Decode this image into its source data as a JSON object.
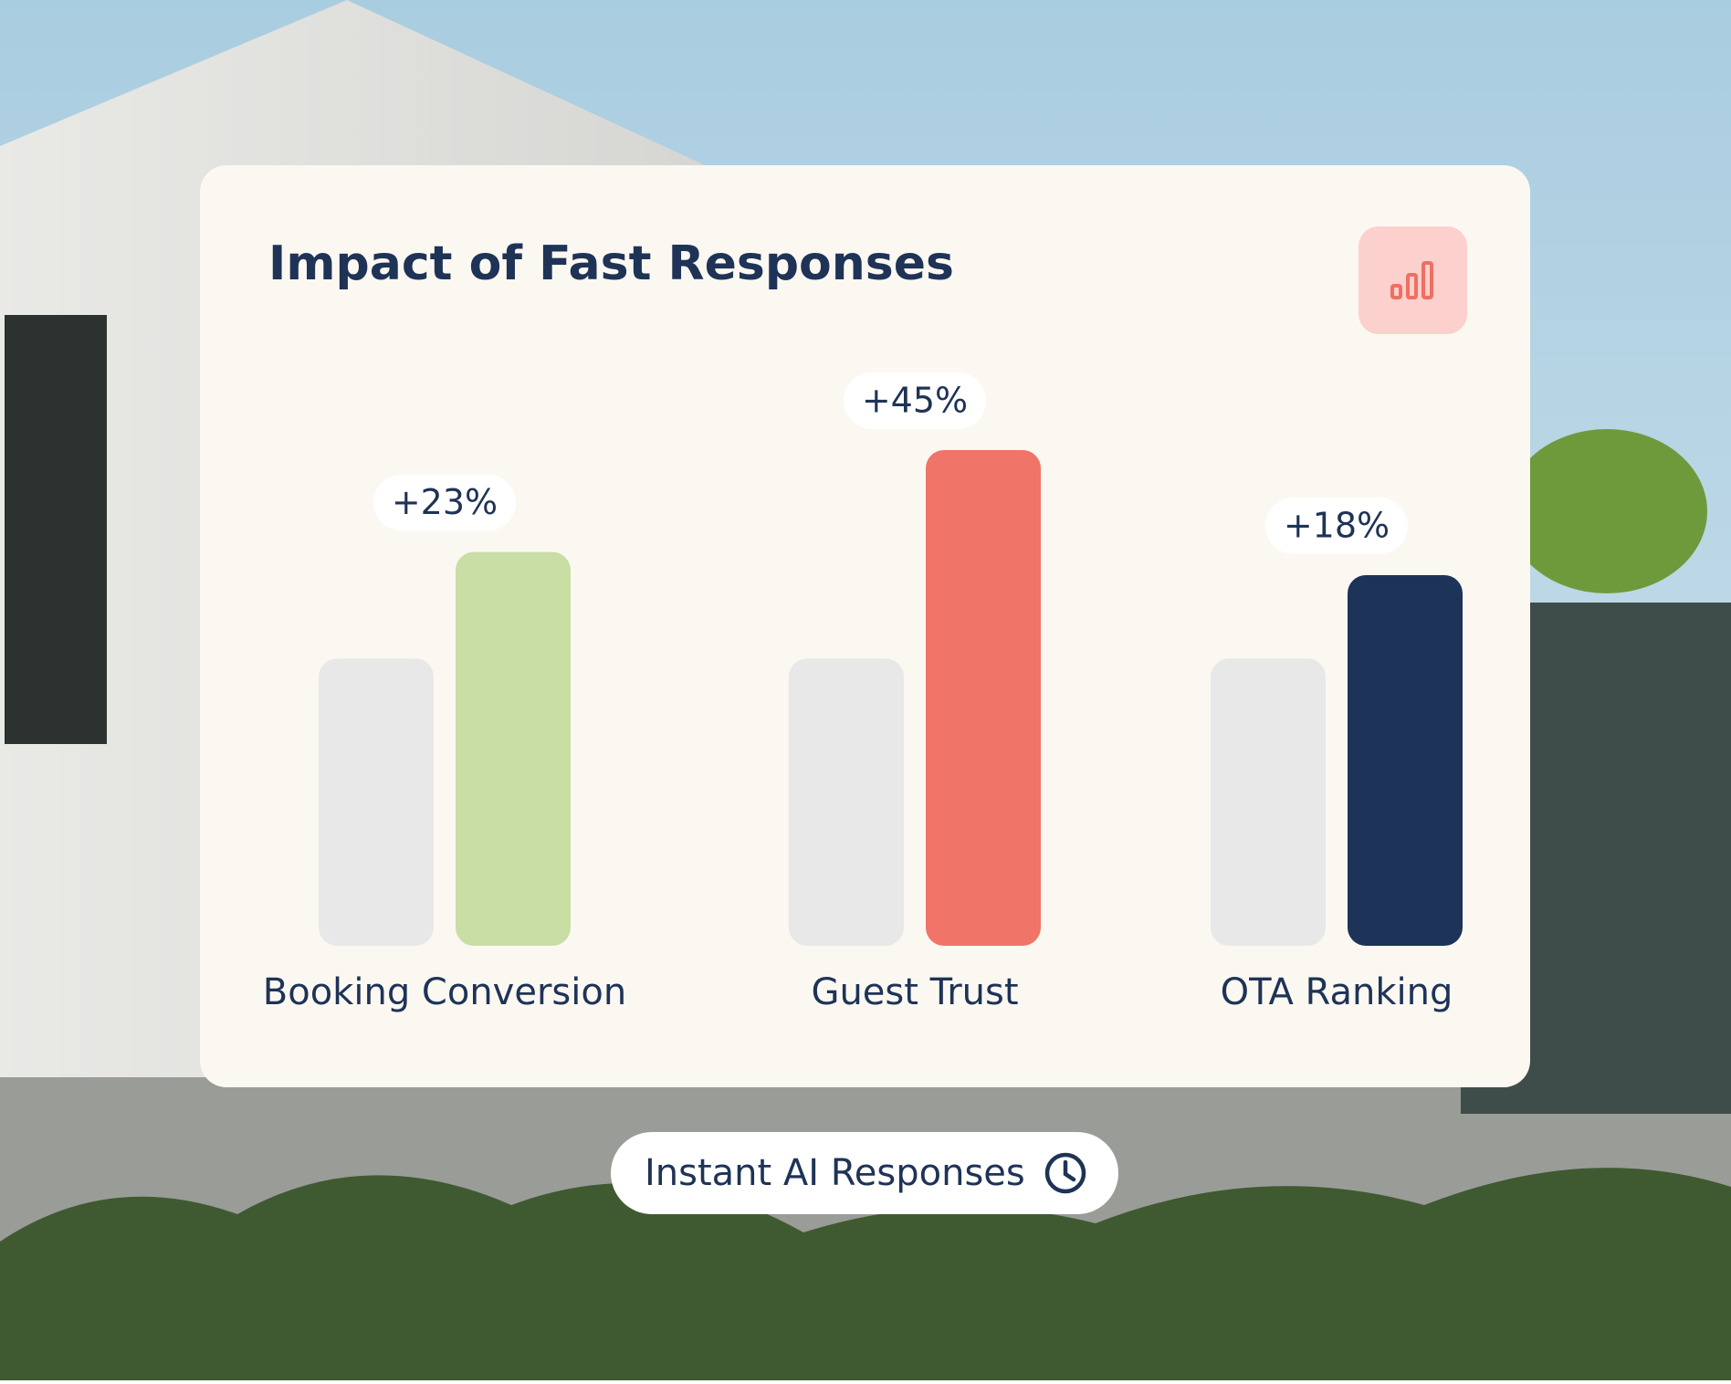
{
  "chart_data": {
    "type": "bar",
    "title": "Impact of Fast Responses",
    "categories": [
      "Booking Conversion",
      "Guest Trust",
      "OTA Ranking"
    ],
    "series": [
      {
        "color": "#e8e8e8",
        "values": [
          0,
          0,
          0
        ]
      },
      {
        "colors": [
          "#c8dea5",
          "#f07468",
          "#1d3358"
        ],
        "values": [
          23,
          45,
          18
        ],
        "value_labels": [
          "+23%",
          "+45%",
          "+18%"
        ]
      }
    ],
    "ylim": [
      -62,
      45
    ]
  },
  "badge": {
    "label": "Instant AI Responses"
  }
}
